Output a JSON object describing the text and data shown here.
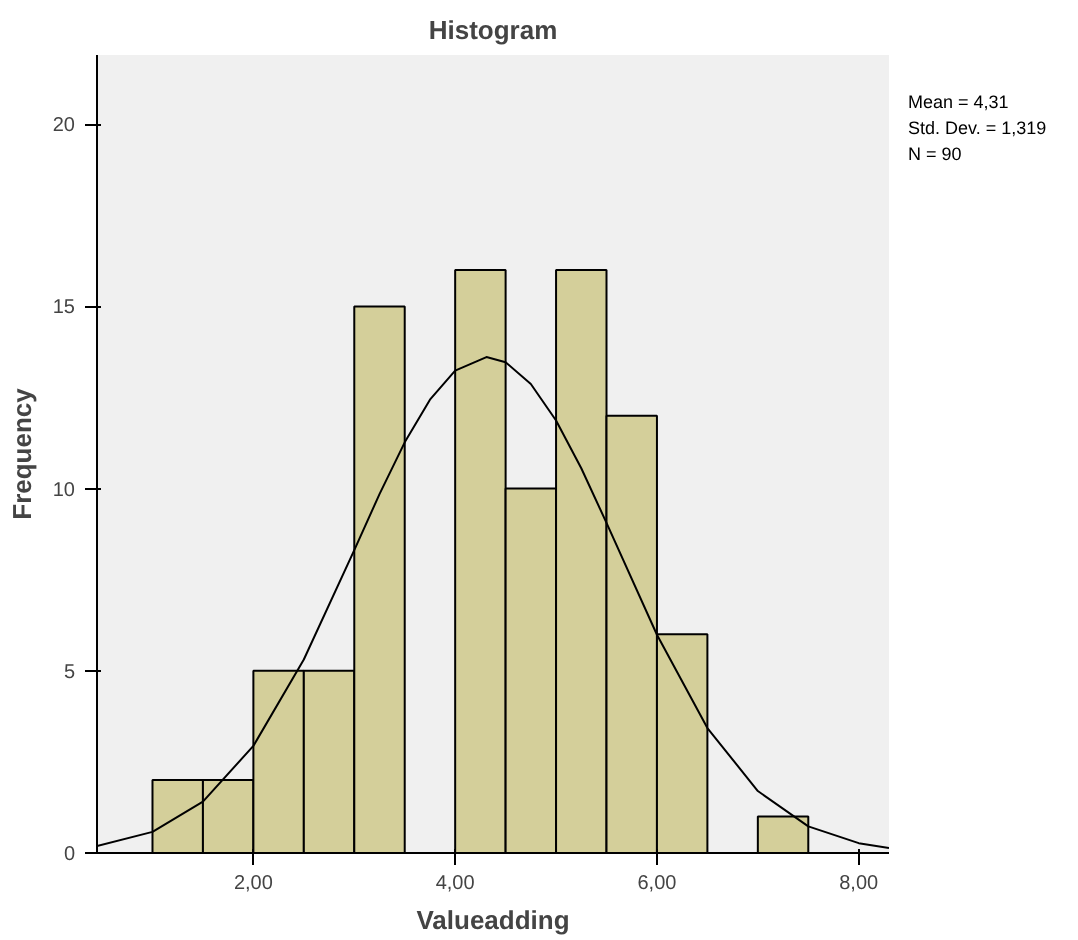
{
  "chart_data": {
    "type": "histogram",
    "title": "Histogram",
    "xlabel": "Valueadding",
    "ylabel": "Frequency",
    "bins": [
      1.0,
      1.5,
      2.0,
      2.5,
      3.0,
      3.5,
      4.0,
      4.5,
      5.0,
      5.5,
      6.0,
      6.5,
      7.0,
      7.5
    ],
    "values": [
      2,
      2,
      5,
      5,
      15,
      0,
      16,
      10,
      16,
      12,
      6,
      0,
      1
    ],
    "color": "#d4cf9a",
    "series": [
      {
        "type": "line",
        "color": "#000000",
        "x": [
          0.45,
          1.0,
          1.5,
          2.0,
          2.5,
          3.0,
          3.25,
          3.5,
          3.75,
          4.0,
          4.31,
          4.5,
          4.75,
          5.0,
          5.25,
          5.5,
          6.0,
          6.5,
          7.0,
          7.5,
          8.0,
          8.3
        ],
        "values": [
          0.19,
          0.58,
          1.41,
          2.94,
          5.31,
          8.31,
          9.85,
          11.27,
          12.44,
          13.24,
          13.61,
          13.47,
          12.87,
          11.87,
          10.56,
          9.06,
          5.99,
          3.43,
          1.7,
          0.73,
          0.27,
          0.14
        ]
      }
    ],
    "xlim": [
      0.45,
      8.3
    ],
    "ylim": [
      0,
      21.9
    ],
    "xticks": [
      {
        "value": 2,
        "label": "2,00"
      },
      {
        "value": 4,
        "label": "4,00"
      },
      {
        "value": 6,
        "label": "6,00"
      },
      {
        "value": 8,
        "label": "8,00"
      }
    ],
    "yticks": [
      0,
      5,
      10,
      15,
      20
    ],
    "grid": false,
    "annotations": [
      "Mean = 4,31\nStd. Dev. = 1,319\nN = 90"
    ]
  }
}
